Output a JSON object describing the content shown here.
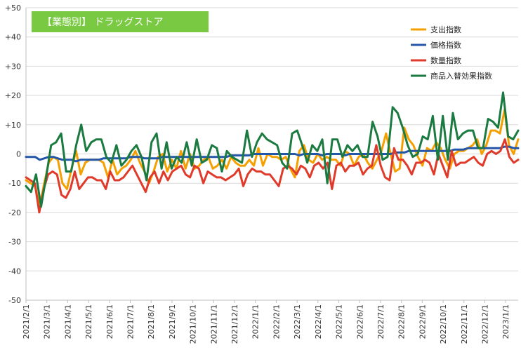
{
  "chart_data": {
    "type": "line",
    "title": "【業態別】 ドラッグストア",
    "title_bg": "#7ac943",
    "xlabel": "",
    "ylabel": "",
    "ylim": [
      -50,
      50
    ],
    "y_ticks": [
      50,
      40,
      30,
      20,
      10,
      0,
      -10,
      -20,
      -30,
      -40,
      -50
    ],
    "y_tick_labels": [
      "+50",
      "+40",
      "+30",
      "+20",
      "+10",
      "0",
      "-10",
      "-20",
      "-30",
      "-40",
      "-50"
    ],
    "x_tick_labels": [
      "2021/2/1",
      "2021/3/1",
      "2021/4/1",
      "2021/5/1",
      "2021/6/1",
      "2021/7/1",
      "2021/8/1",
      "2021/9/1",
      "2021/10/1",
      "2021/11/1",
      "2021/12/1",
      "2022/1/1",
      "2022/2/1",
      "2022/3/1",
      "2022/4/1",
      "2022/5/1",
      "2022/6/1",
      "2022/7/1",
      "2022/8/1",
      "2022/9/1",
      "2022/10/1",
      "2022/11/1",
      "2022/12/1",
      "2023/1/1"
    ],
    "x_range_weeks": [
      0,
      106
    ],
    "grid": true,
    "legend_position": "top-right",
    "series": [
      {
        "name": "支出指数",
        "color": "#f5a000",
        "values": [
          -9,
          -10,
          -11,
          -18,
          -10,
          -3,
          -1,
          -2,
          -10,
          -12,
          -5,
          1,
          -7,
          -3,
          -2,
          -2,
          -2,
          -3,
          -8,
          -2,
          -7,
          -5,
          -4,
          -2,
          1,
          -3,
          -6,
          -10,
          -6,
          -1,
          0,
          -6,
          -2,
          -5,
          1,
          -5,
          0,
          -5,
          -4,
          -2,
          -1,
          -5,
          -4,
          -2,
          -5,
          -1,
          -3,
          -4,
          -4,
          -2,
          -4,
          2,
          -4,
          0,
          -1,
          -1,
          -2,
          -1,
          -5,
          -8,
          1,
          3,
          -2,
          -3,
          0,
          -2,
          -1,
          -2,
          -2,
          -4,
          1,
          0,
          -4,
          -1,
          0,
          -3,
          -5,
          -2,
          1,
          7,
          0,
          -6,
          -5,
          9,
          5,
          3,
          -1,
          -4,
          2,
          1,
          4,
          2,
          -2,
          -5,
          0,
          1,
          1,
          2,
          3,
          5,
          0,
          3,
          8,
          8,
          7,
          15,
          3,
          0,
          5
        ]
      },
      {
        "name": "価格指数",
        "color": "#2457a8",
        "values": [
          -1,
          -1,
          -1,
          -2,
          -1.5,
          -1,
          -1,
          -1.5,
          -2,
          -2,
          -2,
          -2.5,
          -2,
          -2,
          -2,
          -2,
          -2,
          -1.5,
          -1.5,
          -1.5,
          -1.5,
          -1.5,
          -1.5,
          -1,
          -1,
          -1,
          -1.5,
          -1.5,
          -1.5,
          -1.5,
          -1,
          -1,
          -1,
          -1,
          -1,
          -1,
          -1,
          -1,
          -1,
          -1,
          -1,
          -1,
          -1,
          -1,
          -1,
          -0.5,
          -0.5,
          -0.5,
          -0.5,
          -0.5,
          0,
          0,
          0,
          0,
          0,
          0,
          0,
          0,
          0,
          0,
          -0.5,
          0,
          0,
          0,
          0,
          -0.5,
          0,
          0,
          0,
          0,
          -0.5,
          0,
          0,
          0,
          0,
          0,
          0,
          0,
          0,
          0,
          0,
          0.5,
          0.5,
          0.5,
          1,
          1,
          1,
          1,
          1,
          1,
          1,
          1,
          1,
          1,
          1.5,
          1.5,
          1.5,
          2,
          2,
          2,
          2,
          2,
          2,
          2,
          2,
          2.5,
          2.5,
          2,
          2
        ]
      },
      {
        "name": "数量指数",
        "color": "#e03a2a",
        "values": [
          -8,
          -9,
          -10,
          -20,
          -12,
          -7,
          -6,
          -7,
          -14,
          -15,
          -12,
          -6,
          -12,
          -10,
          -8,
          -8,
          -9,
          -9,
          -12,
          -6,
          -9,
          -9,
          -8,
          -6,
          -4,
          -7,
          -10,
          -13,
          -8,
          -6,
          -10,
          -6,
          -9,
          -6,
          -5,
          -4,
          -7,
          -8,
          -4,
          -5,
          -10,
          -6,
          -7,
          -8,
          -8,
          -9,
          -8,
          -7,
          -5,
          -11,
          -7,
          -5,
          -6,
          -6,
          -7,
          -7,
          -9,
          -11,
          -5,
          -4,
          -5,
          -7,
          -4,
          -5,
          -8,
          -4,
          -3,
          -5,
          -3,
          -12,
          -4,
          -3,
          -6,
          -4,
          -4,
          -3,
          -7,
          -5,
          -4,
          3,
          -4,
          -8,
          -9,
          2,
          -2,
          -2,
          -4,
          -7,
          -3,
          -3,
          -2,
          -3,
          -7,
          0,
          -4,
          -8,
          1,
          -4,
          -3,
          -3,
          -2,
          -1,
          -3,
          -4,
          0,
          1,
          0,
          1,
          5,
          -1,
          -3,
          -2
        ]
      },
      {
        "name": "商品入替効果指数",
        "color": "#1a7a40",
        "values": [
          -11,
          -13,
          -7,
          -18,
          -8,
          3,
          4,
          7,
          -6,
          -6,
          3,
          10,
          1,
          4,
          5,
          5,
          -1,
          -3,
          3,
          -4,
          -2,
          1,
          3,
          -1,
          -9,
          4,
          7,
          -5,
          4,
          -5,
          -1,
          -3,
          4,
          -4,
          5,
          -3,
          -2,
          3,
          2,
          -6,
          1,
          -1,
          -2,
          -3,
          8,
          -1,
          4,
          7,
          5,
          4,
          3,
          -3,
          -5,
          7,
          8,
          3,
          -3,
          3,
          1,
          5,
          -10,
          5,
          5,
          -1,
          3,
          1,
          3,
          -1,
          -1,
          11,
          6,
          -2,
          -1,
          16,
          14,
          9,
          3,
          -1,
          0,
          6,
          5,
          13,
          -2,
          13,
          -2,
          14,
          5,
          7,
          8,
          8,
          2,
          2,
          12,
          11,
          9,
          21,
          6,
          5,
          8
        ]
      }
    ]
  }
}
